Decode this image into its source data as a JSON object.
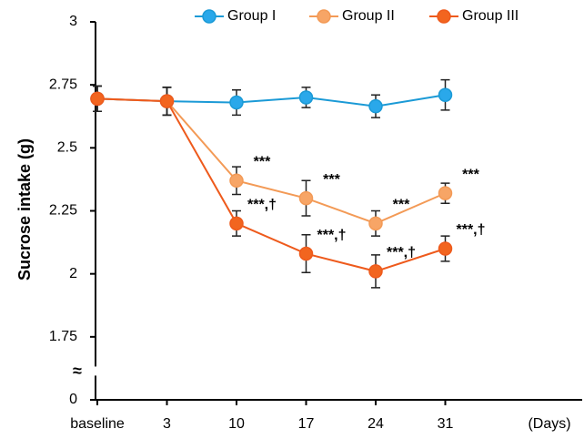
{
  "chart_data": {
    "type": "line",
    "y_label": "Sucrose  intake (g)",
    "x_label": "(Days)",
    "categories": [
      "baseline",
      "3",
      "10",
      "17",
      "24",
      "31"
    ],
    "ylim": [
      0,
      3
    ],
    "yticks": [
      0,
      1.75,
      2,
      2.25,
      2.5,
      2.75,
      3
    ],
    "axis_break": [
      0,
      1.75
    ],
    "axis_break_label": "≈",
    "legend": "top",
    "series": [
      {
        "name": "Group I",
        "color": "#1b9ad6",
        "fill": "#2aa8ea",
        "values": [
          2.695,
          2.685,
          2.68,
          2.7,
          2.665,
          2.71
        ],
        "errors": [
          0.05,
          0.055,
          0.05,
          0.04,
          0.045,
          0.06
        ],
        "annotations": [
          null,
          null,
          null,
          null,
          null,
          null
        ]
      },
      {
        "name": "Group II",
        "color": "#f39a56",
        "fill": "#f7a566",
        "values": [
          2.695,
          2.685,
          2.37,
          2.3,
          2.2,
          2.32
        ],
        "errors": [
          0.05,
          0.055,
          0.055,
          0.07,
          0.05,
          0.04
        ],
        "annotations": [
          null,
          null,
          "***",
          "***",
          "***",
          "***"
        ]
      },
      {
        "name": "Group III",
        "color": "#ee5a1c",
        "fill": "#f2651f",
        "values": [
          2.695,
          2.685,
          2.2,
          2.08,
          2.01,
          2.1
        ],
        "errors": [
          0.05,
          0.055,
          0.05,
          0.075,
          0.065,
          0.05
        ],
        "annotations": [
          null,
          null,
          "***,†",
          "***,†",
          "***,†",
          "***,†"
        ]
      }
    ]
  }
}
